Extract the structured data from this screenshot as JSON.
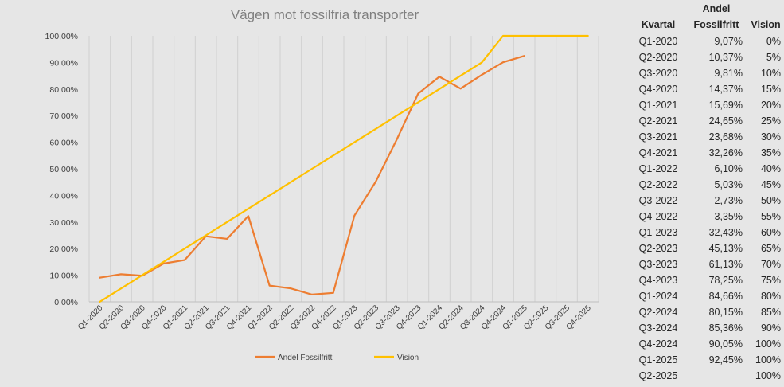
{
  "chart_data": {
    "type": "line",
    "title": "Vägen mot fossilfria transporter",
    "xlabel": "",
    "ylabel": "",
    "ylim": [
      0,
      100
    ],
    "yticks": [
      "0,00%",
      "10,00%",
      "20,00%",
      "30,00%",
      "40,00%",
      "50,00%",
      "60,00%",
      "70,00%",
      "80,00%",
      "90,00%",
      "100,00%"
    ],
    "categories": [
      "Q1-2020",
      "Q2-2020",
      "Q3-2020",
      "Q4-2020",
      "Q1-2021",
      "Q2-2021",
      "Q3-2021",
      "Q4-2021",
      "Q1-2022",
      "Q2-2022",
      "Q3-2022",
      "Q4-2022",
      "Q1-2023",
      "Q2-2023",
      "Q3-2023",
      "Q4-2023",
      "Q1-2024",
      "Q2-2024",
      "Q3-2024",
      "Q4-2024",
      "Q1-2025",
      "Q2-2025",
      "Q3-2025",
      "Q4-2025"
    ],
    "series": [
      {
        "name": "Andel Fossilfritt",
        "color": "#ed7d31",
        "values": [
          9.07,
          10.37,
          9.81,
          14.37,
          15.69,
          24.65,
          23.68,
          32.26,
          6.1,
          5.03,
          2.73,
          3.35,
          32.43,
          45.13,
          61.13,
          78.25,
          84.66,
          80.15,
          85.36,
          90.05,
          92.45,
          null,
          null,
          null
        ]
      },
      {
        "name": "Vision",
        "color": "#ffc000",
        "values": [
          0,
          5,
          10,
          15,
          20,
          25,
          30,
          35,
          40,
          45,
          50,
          55,
          60,
          65,
          70,
          75,
          80,
          85,
          90,
          100,
          100,
          100,
          100,
          100
        ]
      }
    ],
    "grid": "vertical",
    "legend": "bottom"
  },
  "table": {
    "header": {
      "quarter": "Kvartal",
      "andel_line1": "Andel",
      "andel_line2": "Fossilfritt",
      "vision": "Vision"
    },
    "rows": [
      {
        "q": "Q1-2020",
        "andel": "9,07%",
        "vision": "0%"
      },
      {
        "q": "Q2-2020",
        "andel": "10,37%",
        "vision": "5%"
      },
      {
        "q": "Q3-2020",
        "andel": "9,81%",
        "vision": "10%"
      },
      {
        "q": "Q4-2020",
        "andel": "14,37%",
        "vision": "15%"
      },
      {
        "q": "Q1-2021",
        "andel": "15,69%",
        "vision": "20%"
      },
      {
        "q": "Q2-2021",
        "andel": "24,65%",
        "vision": "25%"
      },
      {
        "q": "Q3-2021",
        "andel": "23,68%",
        "vision": "30%"
      },
      {
        "q": "Q4-2021",
        "andel": "32,26%",
        "vision": "35%"
      },
      {
        "q": "Q1-2022",
        "andel": "6,10%",
        "vision": "40%"
      },
      {
        "q": "Q2-2022",
        "andel": "5,03%",
        "vision": "45%"
      },
      {
        "q": "Q3-2022",
        "andel": "2,73%",
        "vision": "50%"
      },
      {
        "q": "Q4-2022",
        "andel": "3,35%",
        "vision": "55%"
      },
      {
        "q": "Q1-2023",
        "andel": "32,43%",
        "vision": "60%"
      },
      {
        "q": "Q2-2023",
        "andel": "45,13%",
        "vision": "65%"
      },
      {
        "q": "Q3-2023",
        "andel": "61,13%",
        "vision": "70%"
      },
      {
        "q": "Q4-2023",
        "andel": "78,25%",
        "vision": "75%"
      },
      {
        "q": "Q1-2024",
        "andel": "84,66%",
        "vision": "80%"
      },
      {
        "q": "Q2-2024",
        "andel": "80,15%",
        "vision": "85%"
      },
      {
        "q": "Q3-2024",
        "andel": "85,36%",
        "vision": "90%"
      },
      {
        "q": "Q4-2024",
        "andel": "90,05%",
        "vision": "100%"
      },
      {
        "q": "Q1-2025",
        "andel": "92,45%",
        "vision": "100%"
      },
      {
        "q": "Q2-2025",
        "andel": "",
        "vision": "100%"
      }
    ]
  }
}
